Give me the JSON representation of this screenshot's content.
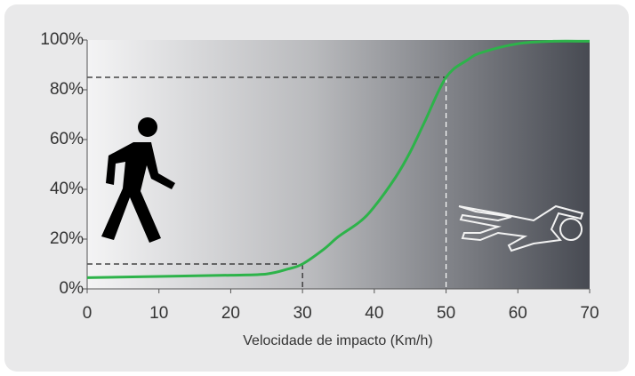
{
  "chart_data": {
    "type": "line",
    "x_label": "Velocidade de impacto (Km/h)",
    "x": [
      0,
      10,
      20,
      25,
      28,
      30,
      33,
      35,
      38,
      40,
      43,
      45,
      47,
      50,
      53,
      55,
      60,
      65,
      70
    ],
    "series": [
      {
        "color": "#2db34a",
        "values": [
          4.5,
          5,
          5.5,
          6,
          8,
          10,
          16,
          21,
          27,
          33,
          45,
          55,
          67,
          85,
          92,
          95,
          98.5,
          99.5,
          99.5
        ]
      }
    ],
    "xlim": [
      0,
      70
    ],
    "xticks": [
      0,
      10,
      20,
      30,
      40,
      50,
      60,
      70
    ],
    "ylim": [
      0,
      100
    ],
    "yticks": [
      {
        "value": 0,
        "label": "0%"
      },
      {
        "value": 20,
        "label": "20%"
      },
      {
        "value": 40,
        "label": "40%"
      },
      {
        "value": 60,
        "label": "60%"
      },
      {
        "value": 80,
        "label": "80%"
      },
      {
        "value": 100,
        "label": "100%"
      }
    ],
    "reference_points": [
      {
        "x": 30,
        "y": 10
      },
      {
        "x": 50,
        "y": 85
      }
    ]
  }
}
